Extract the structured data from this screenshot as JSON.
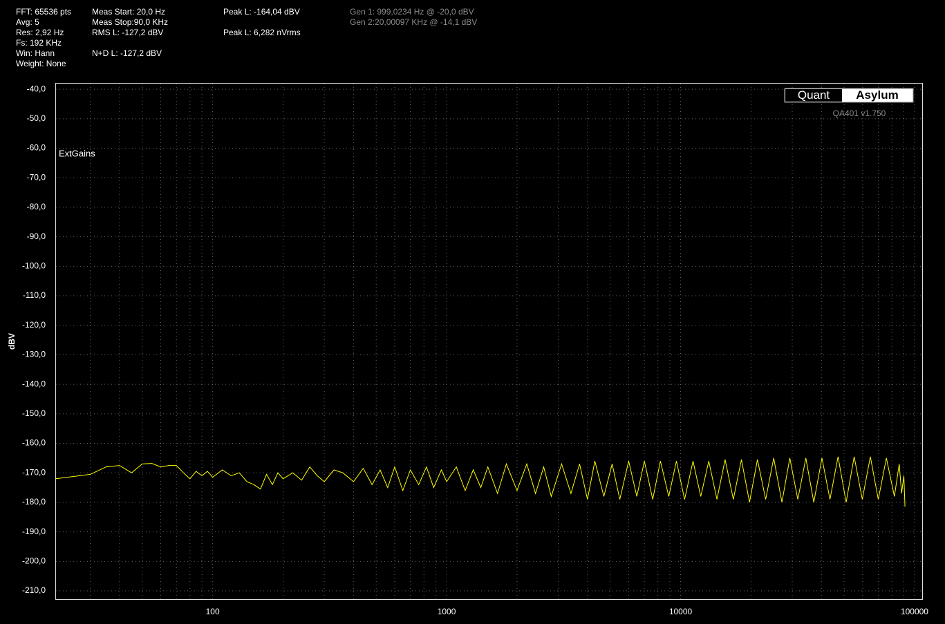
{
  "chart_data": {
    "type": "line",
    "header": {
      "fft": "FFT: 65536 pts",
      "avg": "Avg: 5",
      "res": "Res: 2,92 Hz",
      "fs": "Fs: 192 KHz",
      "win": "Win: Hann",
      "weight": "Weight: None",
      "meas_start": "Meas Start: 20,0 Hz",
      "meas_stop": "Meas Stop:90,0 KHz",
      "rms": "RMS L: -127,2 dBV",
      "nd": "N+D L: -127,2 dBV",
      "peak_dbv": "Peak L: -164,04 dBV",
      "peak_nv": "Peak L: 6,282 nVrms",
      "gen1": "Gen 1: 999,0234 Hz @ -20,0  dBV",
      "gen2": "Gen 2:20,00097 KHz @ -14,1  dBV"
    },
    "logo": [
      "Quant",
      "Asylum"
    ],
    "version": "QA401 v1.750",
    "annotation": "ExtGains",
    "ylabel": "dBV",
    "xscale": "log",
    "grid": true,
    "xlim": [
      21.4,
      107800
    ],
    "ylim": [
      -212.8,
      -38.1
    ],
    "xticks": [
      100,
      1000,
      10000,
      100000
    ],
    "x_minor_ticks": [
      30,
      40,
      50,
      60,
      70,
      80,
      90,
      200,
      300,
      400,
      500,
      600,
      700,
      800,
      900,
      2000,
      3000,
      4000,
      5000,
      6000,
      7000,
      8000,
      9000,
      20000,
      30000,
      40000,
      50000,
      60000,
      70000,
      80000,
      90000
    ],
    "yticks": [
      {
        "value": -40,
        "label": "-40,0"
      },
      {
        "value": -50,
        "label": "-50,0"
      },
      {
        "value": -60,
        "label": "-60,0"
      },
      {
        "value": -70,
        "label": "-70,0"
      },
      {
        "value": -80,
        "label": "-80,0"
      },
      {
        "value": -90,
        "label": "-90,0"
      },
      {
        "value": -100,
        "label": "-100,0"
      },
      {
        "value": -110,
        "label": "-110,0"
      },
      {
        "value": -120,
        "label": "-120,0"
      },
      {
        "value": -130,
        "label": "-130,0"
      },
      {
        "value": -140,
        "label": "-140,0"
      },
      {
        "value": -150,
        "label": "-150,0"
      },
      {
        "value": -160,
        "label": "-160,0"
      },
      {
        "value": -170,
        "label": "-170,0"
      },
      {
        "value": -180,
        "label": "-180,0"
      },
      {
        "value": -190,
        "label": "-190,0"
      },
      {
        "value": -200,
        "label": "-200,0"
      },
      {
        "value": -210,
        "label": "-210,0"
      }
    ],
    "x": [
      21.4,
      30,
      35,
      40,
      45,
      50,
      55,
      60,
      65,
      70,
      75,
      80,
      85,
      90,
      95,
      100,
      110,
      120,
      130,
      140,
      150,
      160,
      170,
      180,
      190,
      200,
      220,
      240,
      260,
      280,
      300,
      330,
      360,
      400,
      440,
      480,
      520,
      560,
      600,
      650,
      700,
      760,
      820,
      880,
      950,
      1000,
      1100,
      1200,
      1300,
      1400,
      1500,
      1650,
      1800,
      2000,
      2200,
      2400,
      2600,
      2800,
      3100,
      3400,
      3700,
      4000,
      4300,
      4700,
      5100,
      5500,
      6000,
      6500,
      7000,
      7600,
      8200,
      8900,
      9600,
      10400,
      11300,
      12200,
      13200,
      14300,
      15500,
      16800,
      18200,
      19700,
      21300,
      23100,
      25000,
      27100,
      29300,
      31700,
      34300,
      37100,
      40200,
      43500,
      47100,
      51000,
      55200,
      59800,
      64700,
      70000,
      75800,
      82000,
      86000,
      88000,
      90000,
      91000
    ],
    "series": [
      {
        "name": "L",
        "color": "#ffff00",
        "values": [
          -172,
          -170.5,
          -168,
          -167.5,
          -170,
          -167,
          -166.8,
          -168,
          -167.5,
          -167.5,
          -170,
          -172,
          -169.5,
          -171,
          -169.5,
          -171.5,
          -169,
          -171,
          -170,
          -173,
          -174,
          -175.5,
          -170.5,
          -174,
          -170,
          -172,
          -170,
          -172.5,
          -168,
          -171,
          -173,
          -169,
          -170,
          -173,
          -168.5,
          -174,
          -169,
          -175,
          -168,
          -176,
          -169,
          -174,
          -168,
          -175,
          -169,
          -173,
          -168,
          -176,
          -169,
          -175,
          -168,
          -177,
          -167,
          -176,
          -167,
          -177,
          -168,
          -178,
          -167,
          -177,
          -167,
          -179,
          -166,
          -178,
          -167,
          -179,
          -166,
          -178,
          -166,
          -179,
          -166,
          -178,
          -166,
          -179,
          -166,
          -178,
          -166,
          -179,
          -165.5,
          -179,
          -165.5,
          -180,
          -165.5,
          -179,
          -165,
          -180,
          -165,
          -179,
          -165,
          -180,
          -165,
          -179,
          -164.5,
          -180,
          -164.5,
          -179,
          -164.5,
          -179,
          -165,
          -178,
          -167,
          -177,
          -171,
          -181.5
        ]
      }
    ]
  }
}
